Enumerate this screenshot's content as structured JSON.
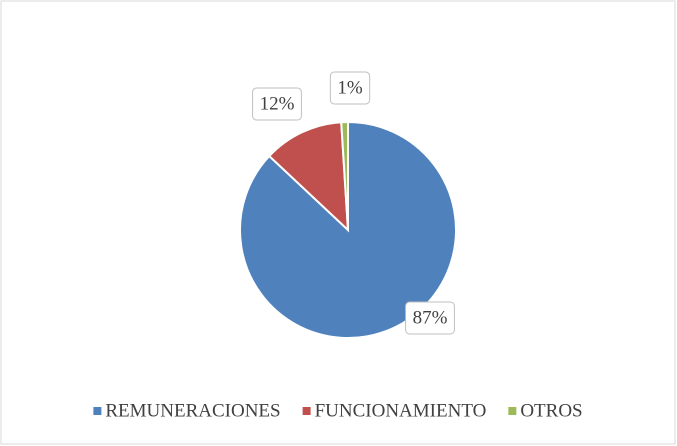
{
  "chart_data": {
    "type": "pie",
    "categories": [
      "REMUNERACIONES",
      "FUNCIONAMIENTO",
      "OTROS"
    ],
    "values": [
      87,
      12,
      1
    ],
    "value_labels": [
      "87%",
      "12%",
      "1%"
    ],
    "colors": [
      "#4f81bd",
      "#c0504d",
      "#9bbb59"
    ],
    "legend": "bottom"
  }
}
